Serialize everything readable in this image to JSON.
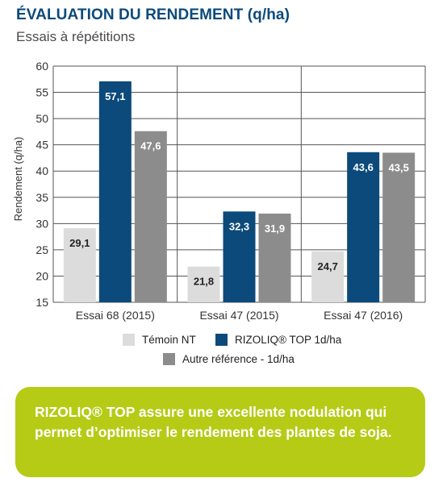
{
  "title": "ÉVALUATION DU RENDEMENT (q/ha)",
  "subtitle": "Essais à répétitions",
  "chart_data": {
    "type": "bar",
    "categories": [
      "Essai 68 (2015)",
      "Essai 47 (2015)",
      "Essai 47 (2016)"
    ],
    "series": [
      {
        "name": "Témoin NT",
        "values": [
          29.1,
          21.8,
          24.7
        ],
        "labels": [
          "29,1",
          "21,8",
          "24,7"
        ],
        "color": "#dcdcdc",
        "label_color": "#222222"
      },
      {
        "name": "RIZOLIQ® TOP 1d/ha",
        "values": [
          57.1,
          32.3,
          43.6
        ],
        "labels": [
          "57,1",
          "32,3",
          "43,6"
        ],
        "color": "#0b4a7b",
        "label_color": "#ffffff"
      },
      {
        "name": "Autre référence - 1d/ha",
        "values": [
          47.6,
          31.9,
          43.5
        ],
        "labels": [
          "47,6",
          "31,9",
          "43,5"
        ],
        "color": "#8c8c8c",
        "label_color": "#ffffff"
      }
    ],
    "ylabel": "Rendement (q/ha)",
    "xlabel": "",
    "ylim": [
      15,
      60
    ],
    "yticks": [
      15,
      20,
      25,
      30,
      35,
      40,
      45,
      50,
      55,
      60
    ],
    "grid": true,
    "legend_position": "bottom"
  },
  "callout": "RIZOLIQ® TOP assure une excellente nodulation qui permet d’optimiser le rendement des plantes de soja."
}
